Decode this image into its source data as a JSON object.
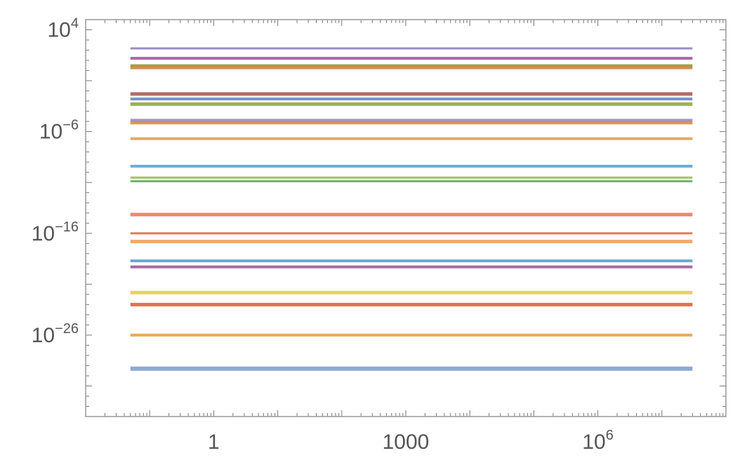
{
  "chart_data": {
    "type": "line",
    "title": "",
    "xlabel": "",
    "ylabel": "",
    "xscale": "log",
    "yscale": "log",
    "xlim": [
      0.01,
      100000000
    ],
    "ylim": [
      1e-34,
      100000.0
    ],
    "grid": false,
    "legend": "none",
    "x_ticks": [
      {
        "value": 1,
        "base": "1",
        "exp": ""
      },
      {
        "value": 1000,
        "base": "1000",
        "exp": ""
      },
      {
        "value": 1000000,
        "base": "10",
        "exp": "6"
      }
    ],
    "y_ticks": [
      {
        "value": 10000.0,
        "base": "10",
        "exp": "4"
      },
      {
        "value": 1e-06,
        "base": "10",
        "exp": "−6"
      },
      {
        "value": 1e-16,
        "base": "10",
        "exp": "−16"
      },
      {
        "value": 1e-26,
        "base": "10",
        "exp": "−26"
      }
    ],
    "series": [
      {
        "values": [
          150.0,
          150.0
        ],
        "color": "#8f7fbf",
        "width": 3
      },
      {
        "values": [
          16.0,
          16.0
        ],
        "color": "#a0569a",
        "width": 4
      },
      {
        "values": [
          3.0,
          3.0
        ],
        "color": "#8f9c3a",
        "width": 4
      },
      {
        "values": [
          2.0,
          2.0
        ],
        "color": "#c5883e",
        "width": 5
      },
      {
        "values": [
          0.005,
          0.005
        ],
        "color": "#a95b58",
        "width": 5
      },
      {
        "values": [
          0.0016,
          0.0016
        ],
        "color": "#6a86c6",
        "width": 4
      },
      {
        "values": [
          0.0005,
          0.0005
        ],
        "color": "#8fad3a",
        "width": 5
      },
      {
        "values": [
          1.2e-05,
          1.2e-05
        ],
        "color": "#9c87b8",
        "width": 5
      },
      {
        "values": [
          7e-06,
          7e-06
        ],
        "color": "#d98e3d",
        "width": 4
      },
      {
        "values": [
          2e-07,
          2e-07
        ],
        "color": "#e0a24a",
        "width": 4
      },
      {
        "values": [
          4e-10,
          4e-10
        ],
        "color": "#5ea5d3",
        "width": 4
      },
      {
        "values": [
          3e-11,
          3e-11
        ],
        "color": "#9bba4a",
        "width": 3
      },
      {
        "values": [
          1.3e-11,
          1.3e-11
        ],
        "color": "#5eaf60",
        "width": 3
      },
      {
        "values": [
          7e-15,
          7e-15
        ],
        "color": "#e8795f",
        "width": 5
      },
      {
        "values": [
          1e-16,
          1e-16
        ],
        "color": "#e06b4c",
        "width": 3
      },
      {
        "values": [
          1.6e-17,
          1.6e-17
        ],
        "color": "#f2a15a",
        "width": 5
      },
      {
        "values": [
          2e-19,
          2e-19
        ],
        "color": "#5d9fd2",
        "width": 4
      },
      {
        "values": [
          5e-20,
          5e-20
        ],
        "color": "#a0569a",
        "width": 4
      },
      {
        "values": [
          1.5e-22,
          1.5e-22
        ],
        "color": "#ecc94a",
        "width": 5
      },
      {
        "values": [
          1e-23,
          1e-23
        ],
        "color": "#e0623e",
        "width": 5
      },
      {
        "values": [
          1e-26,
          1e-26
        ],
        "color": "#e8a04a",
        "width": 4
      },
      {
        "values": [
          5e-30,
          5e-30
        ],
        "color": "#7f9fcf",
        "width": 6
      }
    ],
    "x": [
      0.05,
      30000000
    ]
  },
  "colors": {
    "frame": "#999999",
    "tick": "#777777",
    "background": "#ffffff"
  }
}
